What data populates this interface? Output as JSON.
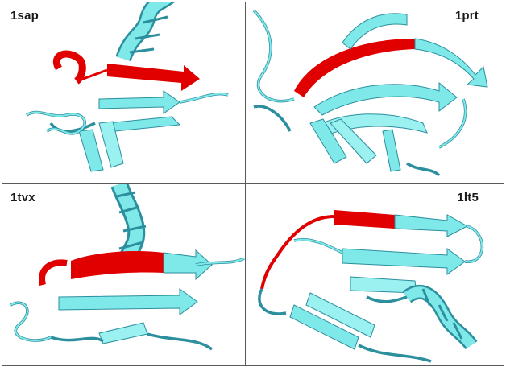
{
  "panels": [
    {
      "id": "1sap"
    },
    {
      "id": "1prt"
    },
    {
      "id": "1tvx"
    },
    {
      "id": "1lt5"
    }
  ],
  "colors": {
    "ribbon": "#7fe8e8",
    "ribbon_shade": "#2c8f9e",
    "highlight": "#e00000",
    "border": "#5a5a5a",
    "background": "#ffffff"
  }
}
